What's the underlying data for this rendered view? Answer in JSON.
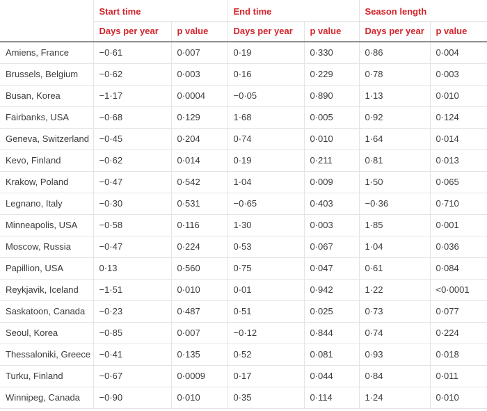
{
  "colors": {
    "header_red": "#d2232a",
    "body_text": "#3b3b3b",
    "border_light": "#e4e4e4",
    "border_heavy": "#909090"
  },
  "chart_data": {
    "type": "table",
    "column_groups": [
      {
        "label": "Start time"
      },
      {
        "label": "End time"
      },
      {
        "label": "Season length"
      }
    ],
    "sub_headers": [
      "Days per year",
      "p value",
      "Days per year",
      "p value",
      "Days per year",
      "p value"
    ],
    "rows": [
      {
        "location": "Amiens, France",
        "values": [
          "−0·61",
          "0·007",
          "0·19",
          "0·330",
          "0·86",
          "0·004"
        ]
      },
      {
        "location": "Brussels, Belgium",
        "values": [
          "−0·62",
          "0·003",
          "0·16",
          "0·229",
          "0·78",
          "0·003"
        ]
      },
      {
        "location": "Busan, Korea",
        "values": [
          "−1·17",
          "0·0004",
          "−0·05",
          "0·890",
          "1·13",
          "0·010"
        ]
      },
      {
        "location": "Fairbanks, USA",
        "values": [
          "−0·68",
          "0·129",
          "1·68",
          "0·005",
          "0·92",
          "0·124"
        ]
      },
      {
        "location": "Geneva, Switzerland",
        "values": [
          "−0·45",
          "0·204",
          "0·74",
          "0·010",
          "1·64",
          "0·014"
        ]
      },
      {
        "location": "Kevo, Finland",
        "values": [
          "−0·62",
          "0·014",
          "0·19",
          "0·211",
          "0·81",
          "0·013"
        ]
      },
      {
        "location": "Krakow, Poland",
        "values": [
          "−0·47",
          "0·542",
          "1·04",
          "0·009",
          "1·50",
          "0·065"
        ]
      },
      {
        "location": "Legnano, Italy",
        "values": [
          "−0·30",
          "0·531",
          "−0·65",
          "0·403",
          "−0·36",
          "0·710"
        ]
      },
      {
        "location": "Minneapolis, USA",
        "values": [
          "−0·58",
          "0·116",
          "1·30",
          "0·003",
          "1·85",
          "0·001"
        ]
      },
      {
        "location": "Moscow, Russia",
        "values": [
          "−0·47",
          "0·224",
          "0·53",
          "0·067",
          "1·04",
          "0·036"
        ]
      },
      {
        "location": "Papillion, USA",
        "values": [
          "0·13",
          "0·560",
          "0·75",
          "0·047",
          "0·61",
          "0·084"
        ]
      },
      {
        "location": "Reykjavik, Iceland",
        "values": [
          "−1·51",
          "0·010",
          "0·01",
          "0·942",
          "1·22",
          "<0·0001"
        ]
      },
      {
        "location": "Saskatoon, Canada",
        "values": [
          "−0·23",
          "0·487",
          "0·51",
          "0·025",
          "0·73",
          "0·077"
        ]
      },
      {
        "location": "Seoul, Korea",
        "values": [
          "−0·85",
          "0·007",
          "−0·12",
          "0·844",
          "0·74",
          "0·224"
        ]
      },
      {
        "location": "Thessaloniki, Greece",
        "values": [
          "−0·41",
          "0·135",
          "0·52",
          "0·081",
          "0·93",
          "0·018"
        ]
      },
      {
        "location": "Turku, Finland",
        "values": [
          "−0·67",
          "0·0009",
          "0·17",
          "0·044",
          "0·84",
          "0·011"
        ]
      },
      {
        "location": "Winnipeg, Canada",
        "values": [
          "−0·90",
          "0·010",
          "0·35",
          "0·114",
          "1·24",
          "0·010"
        ]
      }
    ]
  }
}
